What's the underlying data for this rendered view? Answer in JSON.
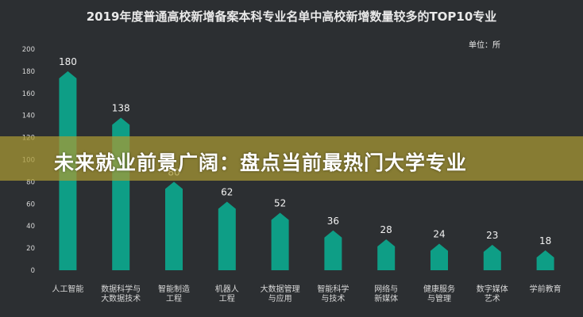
{
  "chart_data": {
    "type": "bar",
    "title": "2019年度普通高校新增备案本科专业名单中高校新增数量较多的TOP10专业",
    "unit_label": "单位：所",
    "categories": [
      [
        "人工智能"
      ],
      [
        "数据科学与",
        "大数据技术"
      ],
      [
        "智能制造",
        "工程"
      ],
      [
        "机器人",
        "工程"
      ],
      [
        "大数据管理",
        "与应用"
      ],
      [
        "智能科学",
        "与技术"
      ],
      [
        "网络与",
        "新媒体"
      ],
      [
        "健康服务",
        "与管理"
      ],
      [
        "数字媒体",
        "艺术"
      ],
      [
        "学前教育"
      ]
    ],
    "values": [
      180,
      138,
      80,
      62,
      52,
      36,
      28,
      24,
      23,
      18
    ],
    "data_labels": [
      "180",
      "138",
      "80",
      "62",
      "52",
      "36",
      "28",
      "24",
      "23",
      "18"
    ],
    "y_ticks": [
      "0",
      "20",
      "40",
      "60",
      "80",
      "100",
      "120",
      "140",
      "160",
      "180",
      "200"
    ],
    "ylim": [
      0,
      200
    ],
    "grid": false,
    "bar_color": "#0e9e86",
    "label_color": "#f2f2f2",
    "axis_text_color": "#d8d8d8"
  },
  "overlay_banner": {
    "text": "未来就业前景广阔：盘点当前最热门大学专业",
    "color": "#ab9a33"
  }
}
